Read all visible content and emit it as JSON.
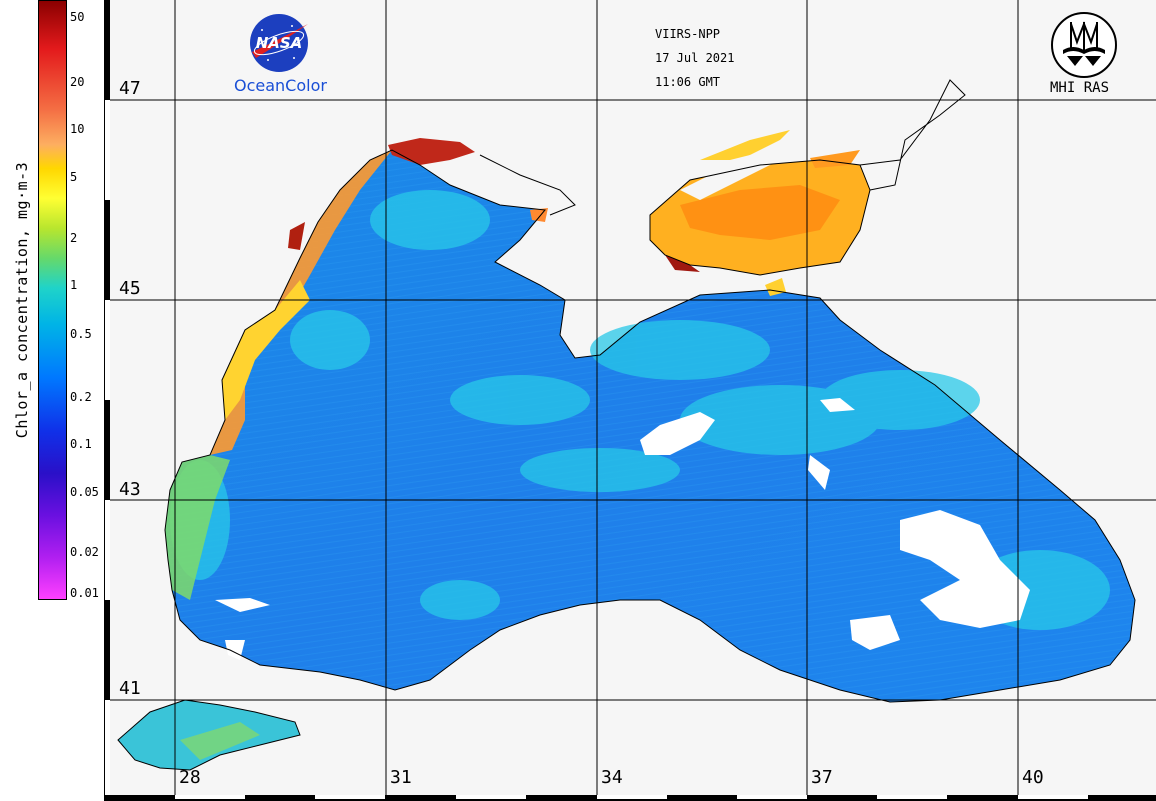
{
  "colorbar": {
    "title": "Chlor_a concentration, mg·m-3",
    "labels": [
      "50",
      "20",
      "10",
      "5",
      "2",
      "1",
      "0.5",
      "0.2",
      "0.1",
      "0.05",
      "0.02",
      "0.01"
    ]
  },
  "header": {
    "sensor": "VIIRS-NPP",
    "date": "17 Jul 2021",
    "time": "11:06 GMT"
  },
  "logos": {
    "nasa": "NASA",
    "nasa_caption": "OceanColor",
    "mhi_caption": "MHI RAS"
  },
  "grid": {
    "latitudes": [
      "47",
      "45",
      "43",
      "41"
    ],
    "longitudes": [
      "28",
      "31",
      "34",
      "37",
      "40"
    ]
  }
}
